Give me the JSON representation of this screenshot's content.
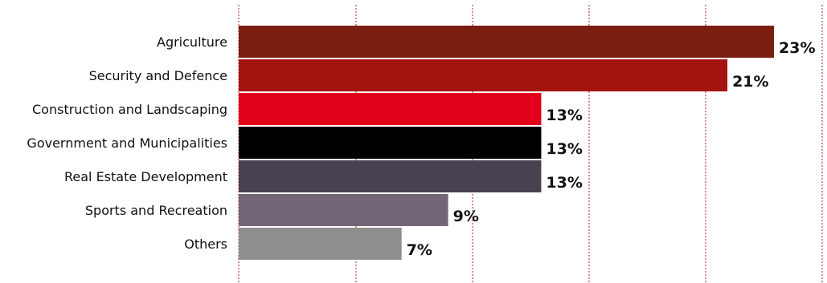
{
  "chart_data": {
    "type": "bar",
    "orientation": "horizontal",
    "categories": [
      "Agriculture",
      "Security and Defence",
      "Construction and Landscaping",
      "Government and Municipalities",
      "Real Estate Development",
      "Sports and Recreation",
      "Others"
    ],
    "values": [
      23,
      21,
      13,
      13,
      13,
      9,
      7
    ],
    "value_labels": [
      "23%",
      "21%",
      "13%",
      "13%",
      "13%",
      "9%",
      "7%"
    ],
    "bar_colors": [
      "#7b1e0f",
      "#a3130f",
      "#e2001a",
      "#000000",
      "#4a4150",
      "#726676",
      "#8e8e8e"
    ],
    "xlim": [
      0,
      23
    ],
    "grid": "vertical dotted",
    "grid_color": "#b52025",
    "title": "",
    "xlabel": "",
    "ylabel": ""
  }
}
